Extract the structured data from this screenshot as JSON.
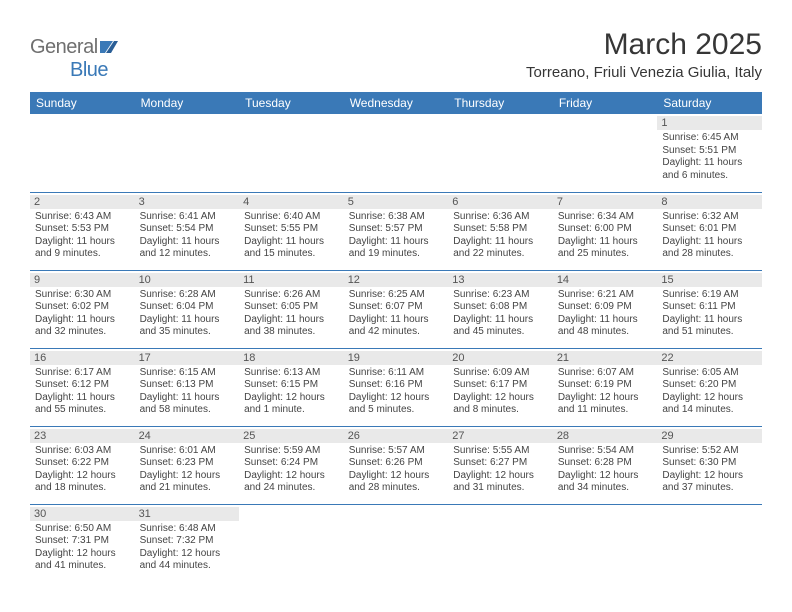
{
  "logo": {
    "general": "General",
    "blue": "Blue"
  },
  "title": "March 2025",
  "location": "Torreano, Friuli Venezia Giulia, Italy",
  "colors": {
    "header_bg": "#3a79b7",
    "header_text": "#ffffff",
    "row_divider": "#3a79b7",
    "daynum_bg": "#e9e9e9",
    "text": "#444444",
    "background": "#ffffff"
  },
  "fonts": {
    "title_pt": 30,
    "location_pt": 15,
    "th_pt": 12,
    "daynum_pt": 11,
    "cell_pt": 10,
    "logo_pt": 20
  },
  "weekdays": [
    "Sunday",
    "Monday",
    "Tuesday",
    "Wednesday",
    "Thursday",
    "Friday",
    "Saturday"
  ],
  "weeks": [
    [
      null,
      null,
      null,
      null,
      null,
      null,
      {
        "n": "1",
        "sunrise": "6:45 AM",
        "sunset": "5:51 PM",
        "daylight": "11 hours and 6 minutes."
      }
    ],
    [
      {
        "n": "2",
        "sunrise": "6:43 AM",
        "sunset": "5:53 PM",
        "daylight": "11 hours and 9 minutes."
      },
      {
        "n": "3",
        "sunrise": "6:41 AM",
        "sunset": "5:54 PM",
        "daylight": "11 hours and 12 minutes."
      },
      {
        "n": "4",
        "sunrise": "6:40 AM",
        "sunset": "5:55 PM",
        "daylight": "11 hours and 15 minutes."
      },
      {
        "n": "5",
        "sunrise": "6:38 AM",
        "sunset": "5:57 PM",
        "daylight": "11 hours and 19 minutes."
      },
      {
        "n": "6",
        "sunrise": "6:36 AM",
        "sunset": "5:58 PM",
        "daylight": "11 hours and 22 minutes."
      },
      {
        "n": "7",
        "sunrise": "6:34 AM",
        "sunset": "6:00 PM",
        "daylight": "11 hours and 25 minutes."
      },
      {
        "n": "8",
        "sunrise": "6:32 AM",
        "sunset": "6:01 PM",
        "daylight": "11 hours and 28 minutes."
      }
    ],
    [
      {
        "n": "9",
        "sunrise": "6:30 AM",
        "sunset": "6:02 PM",
        "daylight": "11 hours and 32 minutes."
      },
      {
        "n": "10",
        "sunrise": "6:28 AM",
        "sunset": "6:04 PM",
        "daylight": "11 hours and 35 minutes."
      },
      {
        "n": "11",
        "sunrise": "6:26 AM",
        "sunset": "6:05 PM",
        "daylight": "11 hours and 38 minutes."
      },
      {
        "n": "12",
        "sunrise": "6:25 AM",
        "sunset": "6:07 PM",
        "daylight": "11 hours and 42 minutes."
      },
      {
        "n": "13",
        "sunrise": "6:23 AM",
        "sunset": "6:08 PM",
        "daylight": "11 hours and 45 minutes."
      },
      {
        "n": "14",
        "sunrise": "6:21 AM",
        "sunset": "6:09 PM",
        "daylight": "11 hours and 48 minutes."
      },
      {
        "n": "15",
        "sunrise": "6:19 AM",
        "sunset": "6:11 PM",
        "daylight": "11 hours and 51 minutes."
      }
    ],
    [
      {
        "n": "16",
        "sunrise": "6:17 AM",
        "sunset": "6:12 PM",
        "daylight": "11 hours and 55 minutes."
      },
      {
        "n": "17",
        "sunrise": "6:15 AM",
        "sunset": "6:13 PM",
        "daylight": "11 hours and 58 minutes."
      },
      {
        "n": "18",
        "sunrise": "6:13 AM",
        "sunset": "6:15 PM",
        "daylight": "12 hours and 1 minute."
      },
      {
        "n": "19",
        "sunrise": "6:11 AM",
        "sunset": "6:16 PM",
        "daylight": "12 hours and 5 minutes."
      },
      {
        "n": "20",
        "sunrise": "6:09 AM",
        "sunset": "6:17 PM",
        "daylight": "12 hours and 8 minutes."
      },
      {
        "n": "21",
        "sunrise": "6:07 AM",
        "sunset": "6:19 PM",
        "daylight": "12 hours and 11 minutes."
      },
      {
        "n": "22",
        "sunrise": "6:05 AM",
        "sunset": "6:20 PM",
        "daylight": "12 hours and 14 minutes."
      }
    ],
    [
      {
        "n": "23",
        "sunrise": "6:03 AM",
        "sunset": "6:22 PM",
        "daylight": "12 hours and 18 minutes."
      },
      {
        "n": "24",
        "sunrise": "6:01 AM",
        "sunset": "6:23 PM",
        "daylight": "12 hours and 21 minutes."
      },
      {
        "n": "25",
        "sunrise": "5:59 AM",
        "sunset": "6:24 PM",
        "daylight": "12 hours and 24 minutes."
      },
      {
        "n": "26",
        "sunrise": "5:57 AM",
        "sunset": "6:26 PM",
        "daylight": "12 hours and 28 minutes."
      },
      {
        "n": "27",
        "sunrise": "5:55 AM",
        "sunset": "6:27 PM",
        "daylight": "12 hours and 31 minutes."
      },
      {
        "n": "28",
        "sunrise": "5:54 AM",
        "sunset": "6:28 PM",
        "daylight": "12 hours and 34 minutes."
      },
      {
        "n": "29",
        "sunrise": "5:52 AM",
        "sunset": "6:30 PM",
        "daylight": "12 hours and 37 minutes."
      }
    ],
    [
      {
        "n": "30",
        "sunrise": "6:50 AM",
        "sunset": "7:31 PM",
        "daylight": "12 hours and 41 minutes."
      },
      {
        "n": "31",
        "sunrise": "6:48 AM",
        "sunset": "7:32 PM",
        "daylight": "12 hours and 44 minutes."
      },
      null,
      null,
      null,
      null,
      null
    ]
  ],
  "line_labels": {
    "sunrise": "Sunrise: ",
    "sunset": "Sunset: ",
    "daylight": "Daylight: "
  }
}
